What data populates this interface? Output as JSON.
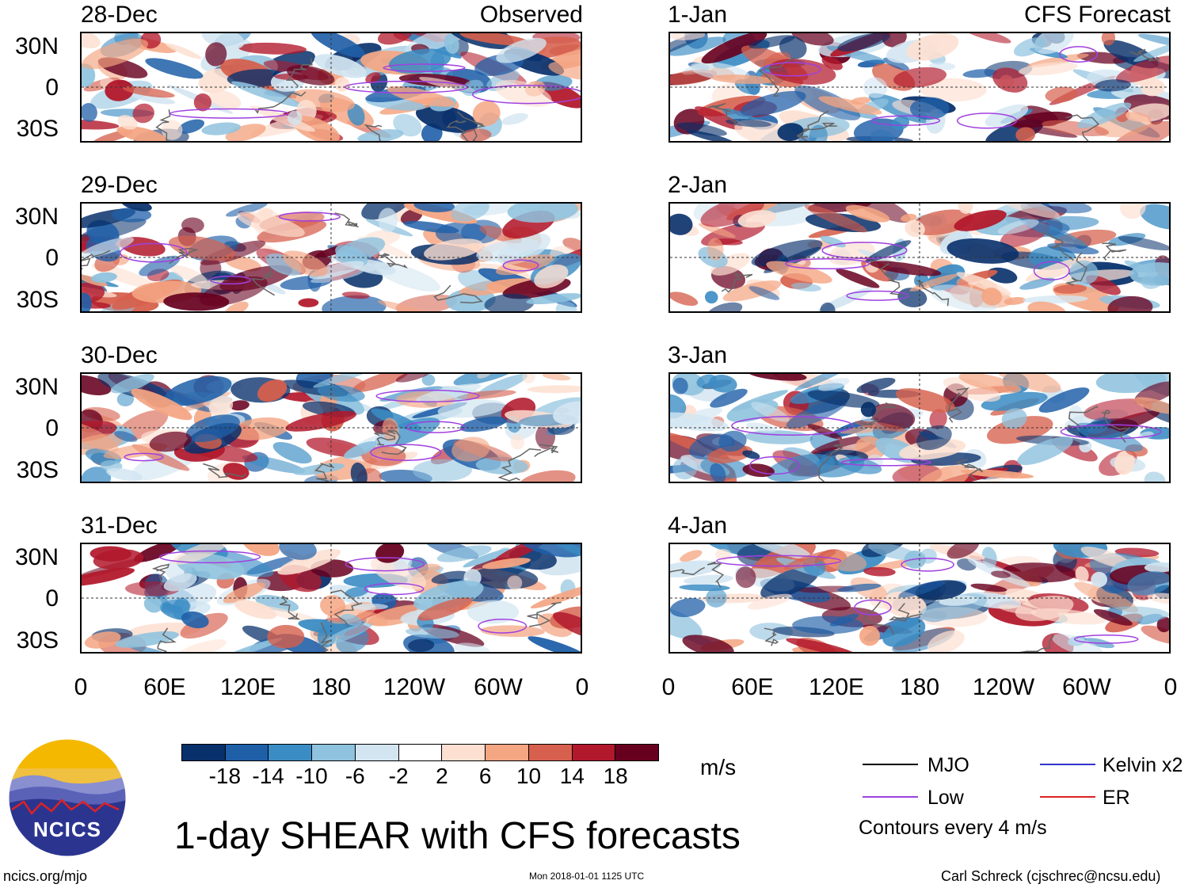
{
  "left_header": "Observed",
  "right_header": "CFS Forecast",
  "left_dates": [
    "28-Dec",
    "29-Dec",
    "30-Dec",
    "31-Dec"
  ],
  "right_dates": [
    "1-Jan",
    "2-Jan",
    "3-Jan",
    "4-Jan"
  ],
  "lat_labels": [
    "30N",
    "0",
    "30S"
  ],
  "lon_labels": [
    "0",
    "60E",
    "120E",
    "180",
    "120W",
    "60W",
    "0"
  ],
  "colorbar": {
    "colors": [
      "#08306b",
      "#1f5fa8",
      "#3a8cc4",
      "#8fc2de",
      "#d2e5f1",
      "#ffffff",
      "#fde0d2",
      "#f4a582",
      "#d6604d",
      "#b2182b",
      "#67001f"
    ],
    "labels": [
      "-18",
      "-14",
      "-10",
      "-6",
      "-2",
      "2",
      "6",
      "10",
      "14",
      "18"
    ],
    "unit": "m/s"
  },
  "legend": {
    "items": [
      {
        "label": "MJO",
        "color": "#000000"
      },
      {
        "label": "Kelvin x2",
        "color": "#3333cc"
      },
      {
        "label": "Low",
        "color": "#a040e0"
      },
      {
        "label": "ER",
        "color": "#dd2222"
      }
    ],
    "note": "Contours every 4 m/s"
  },
  "title": "1-day SHEAR with CFS forecasts",
  "logo_text": "NCICS",
  "footer": {
    "left": "ncics.org/mjo",
    "center": "Mon 2018-01-01 1125 UTC",
    "right": "Carl Schreck (cjschrec@ncsu.edu)"
  }
}
